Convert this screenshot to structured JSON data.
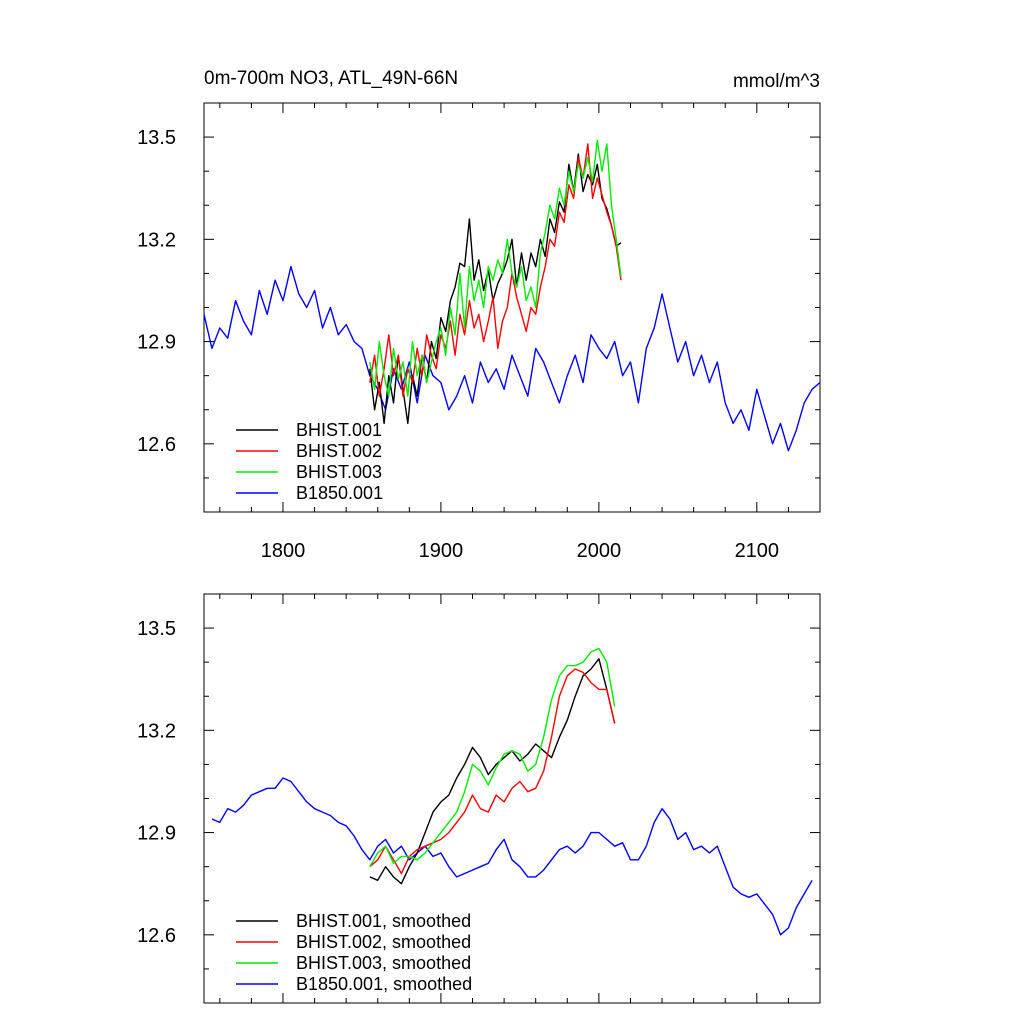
{
  "chart_data": [
    {
      "type": "line",
      "panel": "top",
      "title_left": "0m-700m NO3, ATL_49N-66N",
      "title_right": "mmol/m^3",
      "xlim": [
        1750,
        2140
      ],
      "ylim": [
        12.4,
        13.6
      ],
      "x_ticks": [
        1800,
        1900,
        2000,
        2100
      ],
      "y_ticks": [
        12.6,
        12.9,
        13.2,
        13.5
      ],
      "show_x_labels": true,
      "legend_position": "bottom-left",
      "series": [
        {
          "name": "BHIST.001",
          "color": "#000000",
          "x": [
            1855,
            1858,
            1861,
            1864,
            1867,
            1870,
            1873,
            1876,
            1879,
            1882,
            1885,
            1888,
            1891,
            1894,
            1897,
            1900,
            1903,
            1906,
            1909,
            1912,
            1915,
            1918,
            1921,
            1924,
            1927,
            1930,
            1933,
            1936,
            1939,
            1942,
            1945,
            1948,
            1951,
            1954,
            1957,
            1960,
            1963,
            1966,
            1969,
            1972,
            1975,
            1978,
            1981,
            1984,
            1987,
            1990,
            1993,
            1996,
            1999,
            2002,
            2005,
            2008,
            2011,
            2014
          ],
          "y": [
            12.82,
            12.7,
            12.78,
            12.66,
            12.8,
            12.72,
            12.86,
            12.76,
            12.66,
            12.8,
            12.74,
            12.86,
            12.78,
            12.9,
            12.85,
            12.97,
            12.93,
            13.02,
            13.06,
            13.13,
            13.12,
            13.26,
            13.08,
            13.14,
            13.05,
            13.11,
            13.02,
            13.07,
            13.1,
            13.14,
            13.2,
            13.06,
            13.16,
            13.08,
            13.16,
            13.12,
            13.2,
            13.15,
            13.26,
            13.22,
            13.31,
            13.28,
            13.42,
            13.34,
            13.45,
            13.34,
            13.39,
            13.36,
            13.42,
            13.32,
            13.29,
            13.24,
            13.18,
            13.19
          ]
        },
        {
          "name": "BHIST.002",
          "color": "#ff0000",
          "x": [
            1855,
            1858,
            1861,
            1864,
            1867,
            1870,
            1873,
            1876,
            1879,
            1882,
            1885,
            1888,
            1891,
            1894,
            1897,
            1900,
            1903,
            1906,
            1909,
            1912,
            1915,
            1918,
            1921,
            1924,
            1927,
            1930,
            1933,
            1936,
            1939,
            1942,
            1945,
            1948,
            1951,
            1954,
            1957,
            1960,
            1963,
            1966,
            1969,
            1972,
            1975,
            1978,
            1981,
            1984,
            1987,
            1990,
            1993,
            1996,
            1999,
            2002,
            2005,
            2008,
            2011,
            2014
          ],
          "y": [
            12.78,
            12.86,
            12.74,
            12.82,
            12.92,
            12.8,
            12.86,
            12.74,
            12.82,
            12.78,
            12.88,
            12.8,
            12.92,
            12.86,
            12.82,
            12.92,
            12.88,
            12.96,
            12.86,
            12.98,
            12.92,
            13.02,
            12.94,
            12.98,
            12.9,
            12.96,
            13.03,
            12.88,
            12.96,
            13.0,
            13.1,
            13.03,
            12.98,
            12.93,
            13.0,
            12.98,
            13.06,
            13.12,
            13.2,
            13.18,
            13.28,
            13.25,
            13.36,
            13.32,
            13.44,
            13.38,
            13.48,
            13.32,
            13.38,
            13.33,
            13.28,
            13.24,
            13.18,
            13.08
          ]
        },
        {
          "name": "BHIST.003",
          "color": "#00ee00",
          "x": [
            1855,
            1858,
            1861,
            1864,
            1867,
            1870,
            1873,
            1876,
            1879,
            1882,
            1885,
            1888,
            1891,
            1894,
            1897,
            1900,
            1903,
            1906,
            1909,
            1912,
            1915,
            1918,
            1921,
            1924,
            1927,
            1930,
            1933,
            1936,
            1939,
            1942,
            1945,
            1948,
            1951,
            1954,
            1957,
            1960,
            1963,
            1966,
            1969,
            1972,
            1975,
            1978,
            1981,
            1984,
            1987,
            1990,
            1993,
            1996,
            1999,
            2002,
            2005,
            2008,
            2011,
            2014
          ],
          "y": [
            12.84,
            12.76,
            12.9,
            12.8,
            12.74,
            12.88,
            12.79,
            12.84,
            12.74,
            12.9,
            12.8,
            12.86,
            12.78,
            12.84,
            12.9,
            12.94,
            12.86,
            13.0,
            12.92,
            13.1,
            12.94,
            13.12,
            13.02,
            13.08,
            13.0,
            13.12,
            13.08,
            13.14,
            13.1,
            13.2,
            13.1,
            13.06,
            13.12,
            13.02,
            13.06,
            13.0,
            13.16,
            13.22,
            13.3,
            13.26,
            13.35,
            13.3,
            13.4,
            13.34,
            13.42,
            13.38,
            13.44,
            13.37,
            13.49,
            13.4,
            13.48,
            13.3,
            13.2,
            13.09
          ]
        },
        {
          "name": "B1850.001",
          "color": "#0000ff",
          "x": [
            1750,
            1755,
            1760,
            1765,
            1770,
            1775,
            1780,
            1785,
            1790,
            1795,
            1800,
            1805,
            1810,
            1815,
            1820,
            1825,
            1830,
            1835,
            1840,
            1845,
            1850,
            1855,
            1860,
            1865,
            1870,
            1875,
            1880,
            1885,
            1890,
            1895,
            1900,
            1905,
            1910,
            1915,
            1920,
            1925,
            1930,
            1935,
            1940,
            1945,
            1950,
            1955,
            1960,
            1965,
            1970,
            1975,
            1980,
            1985,
            1990,
            1995,
            2000,
            2005,
            2010,
            2015,
            2020,
            2025,
            2030,
            2035,
            2040,
            2045,
            2050,
            2055,
            2060,
            2065,
            2070,
            2075,
            2080,
            2085,
            2090,
            2095,
            2100,
            2105,
            2110,
            2115,
            2120,
            2125,
            2130,
            2135,
            2140
          ],
          "y": [
            12.98,
            12.88,
            12.94,
            12.91,
            13.02,
            12.96,
            12.92,
            13.05,
            12.98,
            13.08,
            13.02,
            13.12,
            13.04,
            13.0,
            13.05,
            12.94,
            13.0,
            12.92,
            12.95,
            12.9,
            12.88,
            12.8,
            12.76,
            12.7,
            12.82,
            12.76,
            12.84,
            12.72,
            12.86,
            12.8,
            12.78,
            12.7,
            12.74,
            12.8,
            12.72,
            12.84,
            12.78,
            12.82,
            12.76,
            12.86,
            12.8,
            12.74,
            12.88,
            12.84,
            12.78,
            12.72,
            12.8,
            12.86,
            12.78,
            12.92,
            12.88,
            12.85,
            12.9,
            12.8,
            12.84,
            12.72,
            12.88,
            12.94,
            13.04,
            12.94,
            12.84,
            12.9,
            12.8,
            12.86,
            12.78,
            12.84,
            12.72,
            12.66,
            12.7,
            12.64,
            12.76,
            12.68,
            12.6,
            12.66,
            12.58,
            12.64,
            12.72,
            12.76,
            12.78
          ]
        }
      ]
    },
    {
      "type": "line",
      "panel": "bottom",
      "xlim": [
        1750,
        2140
      ],
      "ylim": [
        12.4,
        13.6
      ],
      "x_ticks": [
        1800,
        1900,
        2000,
        2100
      ],
      "y_ticks": [
        12.6,
        12.9,
        13.2,
        13.5
      ],
      "show_x_labels": false,
      "legend_position": "bottom-left",
      "series": [
        {
          "name": "BHIST.001, smoothed",
          "color": "#000000",
          "x": [
            1855,
            1860,
            1865,
            1870,
            1875,
            1880,
            1885,
            1890,
            1895,
            1900,
            1905,
            1910,
            1915,
            1920,
            1925,
            1930,
            1935,
            1940,
            1945,
            1950,
            1955,
            1960,
            1965,
            1970,
            1975,
            1980,
            1985,
            1990,
            1995,
            2000,
            2005,
            2010
          ],
          "y": [
            12.77,
            12.76,
            12.8,
            12.77,
            12.75,
            12.8,
            12.84,
            12.9,
            12.96,
            12.99,
            13.01,
            13.06,
            13.1,
            13.15,
            13.12,
            13.07,
            13.1,
            13.12,
            13.14,
            13.11,
            13.13,
            13.16,
            13.14,
            13.12,
            13.18,
            13.23,
            13.3,
            13.36,
            13.38,
            13.41,
            13.32,
            13.22
          ]
        },
        {
          "name": "BHIST.002, smoothed",
          "color": "#ff0000",
          "x": [
            1855,
            1860,
            1865,
            1870,
            1875,
            1880,
            1885,
            1890,
            1895,
            1900,
            1905,
            1910,
            1915,
            1920,
            1925,
            1930,
            1935,
            1940,
            1945,
            1950,
            1955,
            1960,
            1965,
            1970,
            1975,
            1980,
            1985,
            1990,
            1995,
            2000,
            2005,
            2010
          ],
          "y": [
            12.8,
            12.82,
            12.86,
            12.82,
            12.78,
            12.83,
            12.85,
            12.86,
            12.87,
            12.88,
            12.9,
            12.93,
            12.96,
            13.01,
            12.97,
            12.96,
            13.01,
            12.99,
            13.03,
            13.05,
            13.02,
            13.03,
            13.08,
            13.18,
            13.3,
            13.36,
            13.38,
            13.37,
            13.34,
            13.32,
            13.32,
            13.22
          ]
        },
        {
          "name": "BHIST.003, smoothed",
          "color": "#00ee00",
          "x": [
            1855,
            1860,
            1865,
            1870,
            1875,
            1880,
            1885,
            1890,
            1895,
            1900,
            1905,
            1910,
            1915,
            1920,
            1925,
            1930,
            1935,
            1940,
            1945,
            1950,
            1955,
            1960,
            1965,
            1970,
            1975,
            1980,
            1985,
            1990,
            1995,
            2000,
            2005,
            2010
          ],
          "y": [
            12.8,
            12.84,
            12.86,
            12.81,
            12.83,
            12.83,
            12.82,
            12.84,
            12.87,
            12.9,
            12.93,
            12.96,
            13.02,
            13.1,
            13.08,
            13.04,
            13.09,
            13.13,
            13.14,
            13.13,
            13.08,
            13.1,
            13.18,
            13.29,
            13.36,
            13.39,
            13.39,
            13.4,
            13.43,
            13.44,
            13.4,
            13.27
          ]
        },
        {
          "name": "B1850.001, smoothed",
          "color": "#0000ff",
          "x": [
            1755,
            1760,
            1765,
            1770,
            1775,
            1780,
            1785,
            1790,
            1795,
            1800,
            1805,
            1810,
            1815,
            1820,
            1825,
            1830,
            1835,
            1840,
            1845,
            1850,
            1855,
            1860,
            1865,
            1870,
            1875,
            1880,
            1885,
            1890,
            1895,
            1900,
            1905,
            1910,
            1915,
            1920,
            1925,
            1930,
            1935,
            1940,
            1945,
            1950,
            1955,
            1960,
            1965,
            1970,
            1975,
            1980,
            1985,
            1990,
            1995,
            2000,
            2005,
            2010,
            2015,
            2020,
            2025,
            2030,
            2035,
            2040,
            2045,
            2050,
            2055,
            2060,
            2065,
            2070,
            2075,
            2080,
            2085,
            2090,
            2095,
            2100,
            2105,
            2110,
            2115,
            2120,
            2125,
            2130,
            2135
          ],
          "y": [
            12.94,
            12.93,
            12.97,
            12.96,
            12.98,
            13.01,
            13.02,
            13.03,
            13.03,
            13.06,
            13.05,
            13.02,
            12.99,
            12.97,
            12.96,
            12.95,
            12.93,
            12.92,
            12.89,
            12.85,
            12.82,
            12.86,
            12.88,
            12.84,
            12.86,
            12.82,
            12.84,
            12.86,
            12.83,
            12.84,
            12.8,
            12.77,
            12.78,
            12.79,
            12.8,
            12.81,
            12.85,
            12.88,
            12.82,
            12.8,
            12.77,
            12.77,
            12.79,
            12.82,
            12.85,
            12.86,
            12.84,
            12.86,
            12.9,
            12.9,
            12.88,
            12.86,
            12.87,
            12.82,
            12.82,
            12.86,
            12.93,
            12.97,
            12.94,
            12.88,
            12.9,
            12.85,
            12.86,
            12.84,
            12.86,
            12.8,
            12.74,
            12.72,
            12.71,
            12.72,
            12.69,
            12.66,
            12.6,
            12.62,
            12.68,
            12.72,
            12.76
          ]
        }
      ]
    }
  ]
}
